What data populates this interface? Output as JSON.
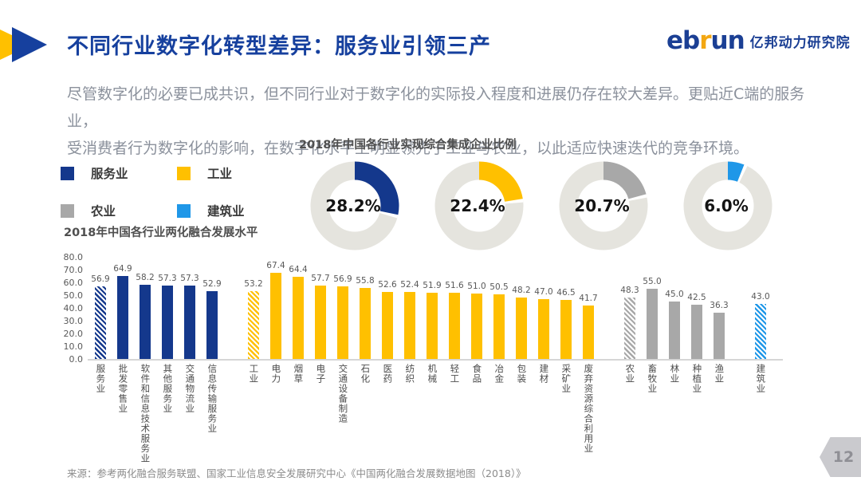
{
  "header": {
    "title": "不同行业数字化转型差异：服务业引领三产",
    "logo": {
      "latin_p1": "eb",
      "latin_p2": "r",
      "latin_p3": "un",
      "cn": "亿邦动力研究院"
    }
  },
  "intro": {
    "line1": "尽管数字化的必要已成共识，但不同行业对于数字化的实际投入程度和进展仍存在较大差异。更贴近C端的服务业，",
    "line2": "受消费者行为数字化的影响，在数字化水平上明显领先于工业与农业，以此适应快速迭代的竞争环境。"
  },
  "colors": {
    "services_blue": "#14388C",
    "industry_yellow": "#FFC000",
    "agriculture_gray": "#A8A8A8",
    "construction_blue": "#1F97E8",
    "ring_background": "#E5E4DE"
  },
  "legend": {
    "items": [
      {
        "label": "服务业",
        "color": "#14388C"
      },
      {
        "label": "工业",
        "color": "#FFC000"
      },
      {
        "label": "农业",
        "color": "#A8A8A8"
      },
      {
        "label": "建筑业",
        "color": "#1F97E8"
      }
    ]
  },
  "chart_data": [
    {
      "type": "pie",
      "style": "donut",
      "title": "2018年中国各行业实现综合集成企业比例",
      "ring_background": "#E5E4DE",
      "slices": [
        {
          "label": "服务业",
          "value": 28.2,
          "display": "28.2%",
          "color": "#14388C"
        },
        {
          "label": "工业",
          "value": 22.4,
          "display": "22.4%",
          "color": "#FFC000"
        },
        {
          "label": "农业",
          "value": 20.7,
          "display": "20.7%",
          "color": "#A8A8A8"
        },
        {
          "label": "建筑业",
          "value": 6.0,
          "display": "6.0%",
          "color": "#1F97E8"
        }
      ]
    },
    {
      "type": "bar",
      "title": "2018年中国各行业两化融合发展水平",
      "ylim": [
        0,
        80
      ],
      "yticks": [
        "80.0",
        "70.0",
        "60.0",
        "50.0",
        "40.0",
        "30.0",
        "20.0",
        "10.0",
        "0.0"
      ],
      "grid": false,
      "groups": [
        {
          "name": "服务业",
          "color": "#14388C",
          "bars": [
            {
              "label": "服务业",
              "value": 56.9,
              "display": "56.9",
              "hatched": true
            },
            {
              "label": "批发零售业",
              "value": 64.9,
              "display": "64.9",
              "hatched": false
            },
            {
              "label": "软件和信息技术服务业",
              "value": 58.2,
              "display": "58.2",
              "hatched": false
            },
            {
              "label": "其他服务业",
              "value": 57.3,
              "display": "57.3",
              "hatched": false
            },
            {
              "label": "交通物流业",
              "value": 57.3,
              "display": "57.3",
              "hatched": false
            },
            {
              "label": "信息传输服务业",
              "value": 52.9,
              "display": "52.9",
              "hatched": false
            }
          ]
        },
        {
          "name": "工业",
          "color": "#FFC000",
          "bars": [
            {
              "label": "工业",
              "value": 53.2,
              "display": "53.2",
              "hatched": true
            },
            {
              "label": "电力",
              "value": 67.4,
              "display": "67.4",
              "hatched": false
            },
            {
              "label": "烟草",
              "value": 64.4,
              "display": "64.4",
              "hatched": false
            },
            {
              "label": "电子",
              "value": 57.7,
              "display": "57.7",
              "hatched": false
            },
            {
              "label": "交通设备制造",
              "value": 56.9,
              "display": "56.9",
              "hatched": false
            },
            {
              "label": "石化",
              "value": 55.8,
              "display": "55.8",
              "hatched": false
            },
            {
              "label": "医药",
              "value": 52.6,
              "display": "52.6",
              "hatched": false
            },
            {
              "label": "纺织",
              "value": 52.4,
              "display": "52.4",
              "hatched": false
            },
            {
              "label": "机械",
              "value": 51.9,
              "display": "51.9",
              "hatched": false
            },
            {
              "label": "轻工",
              "value": 51.6,
              "display": "51.6",
              "hatched": false
            },
            {
              "label": "食品",
              "value": 51.0,
              "display": "51.0",
              "hatched": false
            },
            {
              "label": "冶金",
              "value": 50.5,
              "display": "50.5",
              "hatched": false
            },
            {
              "label": "包装",
              "value": 48.2,
              "display": "48.2",
              "hatched": false
            },
            {
              "label": "建材",
              "value": 47.0,
              "display": "47.0",
              "hatched": false
            },
            {
              "label": "采矿业",
              "value": 46.5,
              "display": "46.5",
              "hatched": false
            },
            {
              "label": "废弃资源综合利用业",
              "value": 41.7,
              "display": "41.7",
              "hatched": false
            }
          ]
        },
        {
          "name": "农业",
          "color": "#A8A8A8",
          "bars": [
            {
              "label": "农业",
              "value": 48.3,
              "display": "48.3",
              "hatched": true
            },
            {
              "label": "畜牧业",
              "value": 55.0,
              "display": "55.0",
              "hatched": false
            },
            {
              "label": "林业",
              "value": 45.0,
              "display": "45.0",
              "hatched": false
            },
            {
              "label": "种植业",
              "value": 42.5,
              "display": "42.5",
              "hatched": false
            },
            {
              "label": "渔业",
              "value": 36.3,
              "display": "36.3",
              "hatched": false
            }
          ]
        },
        {
          "name": "建筑业",
          "color": "#1F97E8",
          "bars": [
            {
              "label": "建筑业",
              "value": 43.0,
              "display": "43.0",
              "hatched": true
            }
          ]
        }
      ]
    }
  ],
  "source": "来源：参考两化融合服务联盟、国家工业信息安全发展研究中心《中国两化融合发展数据地图（2018）》",
  "page_number": "12"
}
